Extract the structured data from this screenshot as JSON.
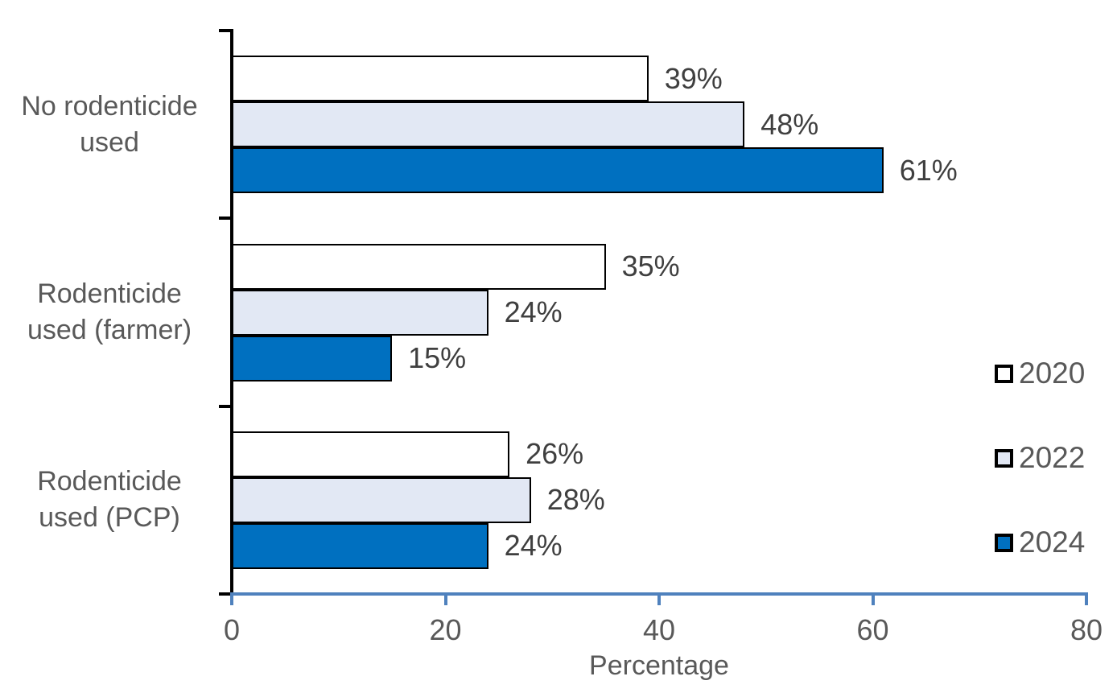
{
  "chart_data": {
    "type": "bar",
    "orientation": "horizontal",
    "title": "",
    "xlabel": "Percentage",
    "ylabel": "",
    "xlim": [
      0,
      80
    ],
    "xticks": [
      0,
      20,
      40,
      60,
      80
    ],
    "grid": false,
    "legend_position": "right",
    "categories": [
      "No rodenticide used",
      "Rodenticide used (farmer)",
      "Rodenticide used (PCP)"
    ],
    "category_lines": [
      [
        "No rodenticide",
        "used"
      ],
      [
        "Rodenticide",
        "used (farmer)"
      ],
      [
        "Rodenticide",
        "used (PCP)"
      ]
    ],
    "series": [
      {
        "name": "2020",
        "fill": "#ffffff",
        "values": [
          39,
          35,
          26
        ]
      },
      {
        "name": "2022",
        "fill": "#e2e8f4",
        "values": [
          48,
          24,
          28
        ]
      },
      {
        "name": "2024",
        "fill": "#0070c0",
        "values": [
          61,
          15,
          24
        ]
      }
    ],
    "data_labels": [
      [
        "39%",
        "48%",
        "61%"
      ],
      [
        "35%",
        "24%",
        "15%"
      ],
      [
        "26%",
        "28%",
        "24%"
      ]
    ],
    "data_label_suffix": "%",
    "colors": {
      "bar_outline": "#000000",
      "x_axis": "#4f81bd",
      "y_axis": "#000000",
      "axis_text": "#595959",
      "data_label_text": "#3f3f3f",
      "background": "#ffffff"
    }
  }
}
